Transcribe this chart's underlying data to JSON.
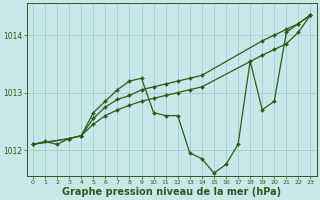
{
  "background_color": "#c8e8e8",
  "grid_color": "#9ecece",
  "line_color": "#2d5a1e",
  "xlabel": "Graphe pression niveau de la mer (hPa)",
  "xlabel_fontsize": 7,
  "xlim": [
    -0.5,
    23.5
  ],
  "ylim": [
    1011.55,
    1014.55
  ],
  "yticks": [
    1012,
    1013,
    1014
  ],
  "xticks": [
    0,
    1,
    2,
    3,
    4,
    5,
    6,
    7,
    8,
    9,
    10,
    11,
    12,
    13,
    14,
    15,
    16,
    17,
    18,
    19,
    20,
    21,
    22,
    23
  ],
  "series_main": {
    "x": [
      0,
      1,
      2,
      3,
      4,
      5,
      6,
      7,
      8,
      9,
      10,
      11,
      12,
      13,
      14,
      15,
      16,
      17,
      18,
      19,
      20,
      21,
      22,
      23
    ],
    "y": [
      1012.1,
      1012.15,
      1012.1,
      1012.2,
      1012.25,
      1012.65,
      1012.85,
      1013.05,
      1013.2,
      1013.25,
      1012.65,
      1012.6,
      1012.6,
      1011.95,
      1011.85,
      1011.6,
      1011.75,
      1012.1,
      1013.55,
      1012.7,
      1012.85,
      1014.05,
      1014.2,
      1014.35
    ]
  },
  "series_line1": {
    "x": [
      0,
      3,
      4,
      5,
      6,
      7,
      8,
      9,
      10,
      11,
      12,
      13,
      14,
      19,
      20,
      21,
      22,
      23
    ],
    "y": [
      1012.1,
      1012.2,
      1012.25,
      1012.55,
      1012.75,
      1012.88,
      1012.95,
      1013.05,
      1013.1,
      1013.15,
      1013.2,
      1013.25,
      1013.3,
      1013.9,
      1014.0,
      1014.1,
      1014.2,
      1014.35
    ]
  },
  "series_line2": {
    "x": [
      0,
      3,
      4,
      5,
      6,
      7,
      8,
      9,
      10,
      11,
      12,
      13,
      14,
      19,
      20,
      21,
      22,
      23
    ],
    "y": [
      1012.1,
      1012.2,
      1012.25,
      1012.45,
      1012.6,
      1012.7,
      1012.78,
      1012.85,
      1012.9,
      1012.95,
      1013.0,
      1013.05,
      1013.1,
      1013.65,
      1013.75,
      1013.85,
      1014.05,
      1014.35
    ]
  }
}
